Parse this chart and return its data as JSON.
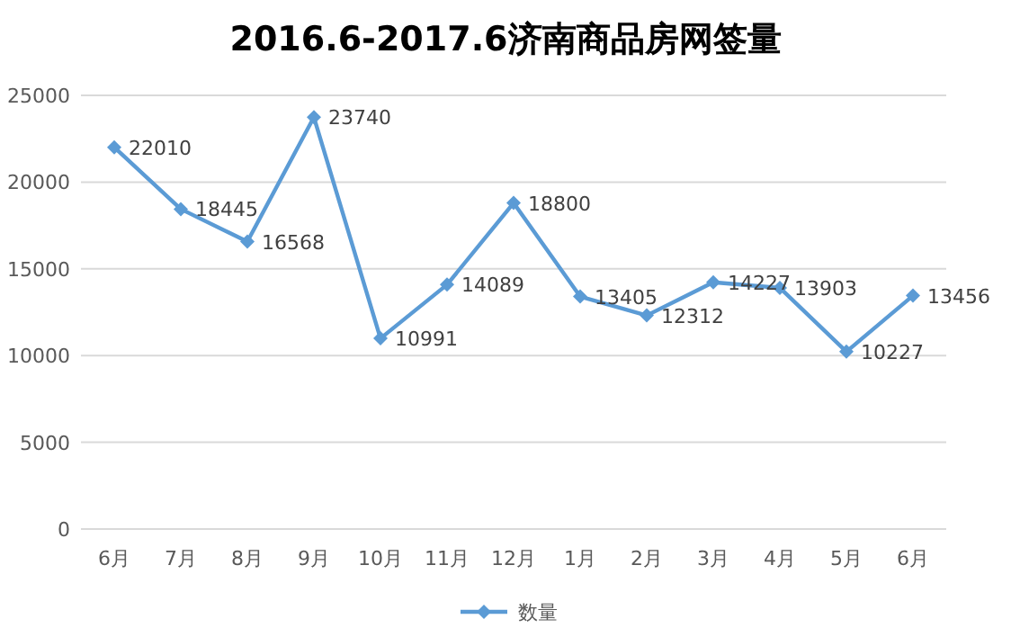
{
  "chart_data": {
    "type": "line",
    "title": "2016.6-2017.6济南商品房网签量",
    "categories": [
      "6月",
      "7月",
      "8月",
      "9月",
      "10月",
      "11月",
      "12月",
      "1月",
      "2月",
      "3月",
      "4月",
      "5月",
      "6月"
    ],
    "series": [
      {
        "name": "数量",
        "color": "#5b9bd5",
        "values": [
          22010,
          18445,
          16568,
          23740,
          10991,
          14089,
          18800,
          13405,
          12312,
          14227,
          13903,
          10227,
          13456
        ]
      }
    ],
    "ylim": [
      0,
      25000
    ],
    "yticks": [
      0,
      5000,
      10000,
      15000,
      20000,
      25000
    ],
    "grid": "y",
    "legend": "bottom",
    "marker": "diamond",
    "data_labels": true
  }
}
